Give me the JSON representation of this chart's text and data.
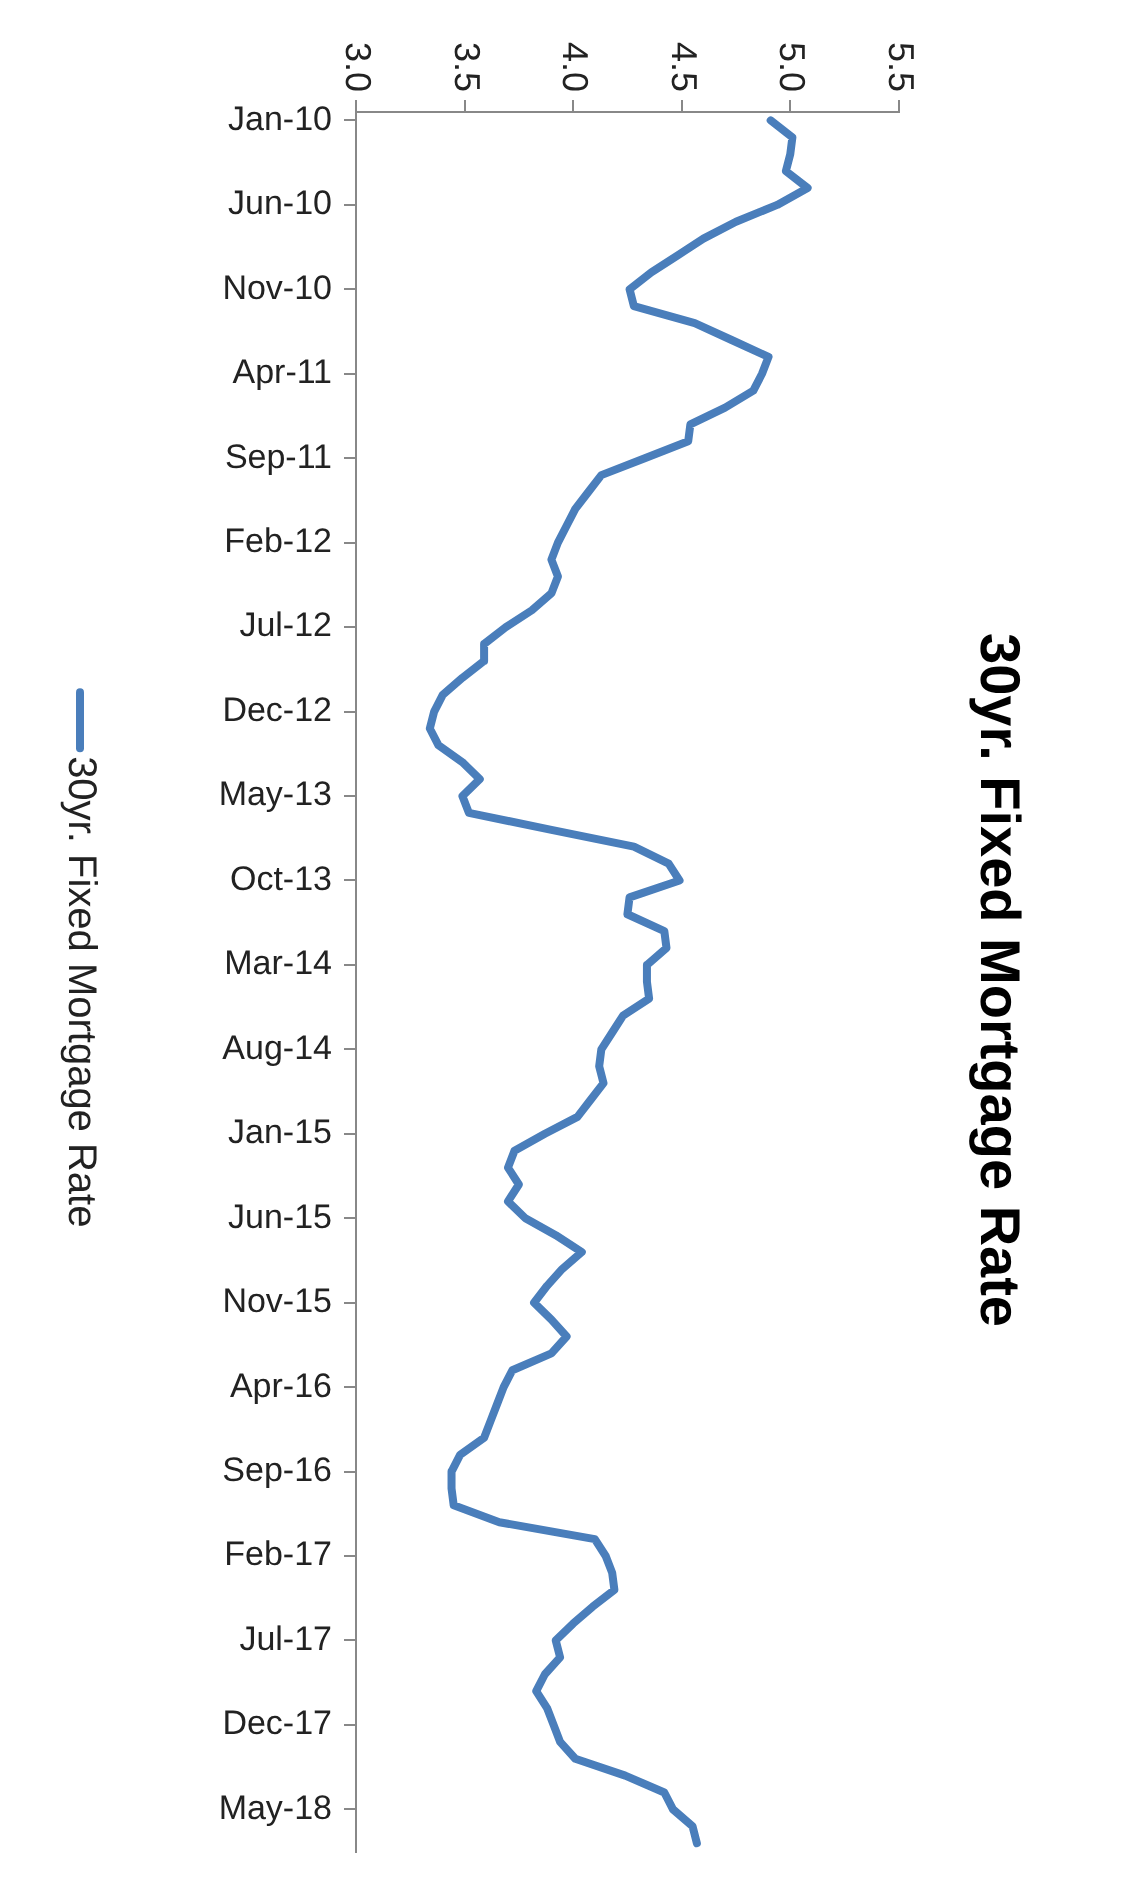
{
  "chart_data": {
    "type": "line",
    "title": "30yr. Fixed Mortgage Rate",
    "categories": [
      "Jan-10",
      null,
      null,
      null,
      null,
      "Jun-10",
      null,
      null,
      null,
      null,
      "Nov-10",
      null,
      null,
      null,
      null,
      "Apr-11",
      null,
      null,
      null,
      null,
      "Sep-11",
      null,
      null,
      null,
      null,
      "Feb-12",
      null,
      null,
      null,
      null,
      "Jul-12",
      null,
      null,
      null,
      null,
      "Dec-12",
      null,
      null,
      null,
      null,
      "May-13",
      null,
      null,
      null,
      null,
      "Oct-13",
      null,
      null,
      null,
      null,
      "Mar-14",
      null,
      null,
      null,
      null,
      "Aug-14",
      null,
      null,
      null,
      null,
      "Jan-15",
      null,
      null,
      null,
      null,
      "Jun-15",
      null,
      null,
      null,
      null,
      "Nov-15",
      null,
      null,
      null,
      null,
      "Apr-16",
      null,
      null,
      null,
      null,
      "Sep-16",
      null,
      null,
      null,
      null,
      "Feb-17",
      null,
      null,
      null,
      null,
      "Jul-17",
      null,
      null,
      null,
      null,
      "Dec-17",
      null,
      null,
      null,
      null,
      "May-18",
      null,
      null
    ],
    "series": [
      {
        "name": "30yr. Fixed Mortgage Rate",
        "color": "#4a7ebb",
        "values": [
          4.91,
          5.01,
          5.0,
          4.98,
          5.08,
          4.94,
          4.75,
          4.6,
          4.48,
          4.36,
          4.26,
          4.28,
          4.56,
          4.73,
          4.9,
          4.87,
          4.83,
          4.7,
          4.54,
          4.53,
          4.33,
          4.13,
          4.07,
          4.01,
          3.97,
          3.93,
          3.9,
          3.93,
          3.9,
          3.81,
          3.69,
          3.59,
          3.59,
          3.49,
          3.4,
          3.36,
          3.34,
          3.38,
          3.49,
          3.57,
          3.49,
          3.52,
          3.9,
          4.28,
          4.44,
          4.49,
          4.26,
          4.25,
          4.42,
          4.43,
          4.34,
          4.34,
          4.35,
          4.23,
          4.18,
          4.13,
          4.12,
          4.14,
          4.08,
          4.02,
          3.87,
          3.73,
          3.7,
          3.75,
          3.7,
          3.78,
          3.92,
          4.04,
          3.95,
          3.88,
          3.82,
          3.9,
          3.97,
          3.9,
          3.72,
          3.68,
          3.65,
          3.62,
          3.59,
          3.48,
          3.44,
          3.44,
          3.45,
          3.66,
          4.1,
          4.15,
          4.18,
          4.19,
          4.09,
          4.0,
          3.92,
          3.94,
          3.87,
          3.83,
          3.88,
          3.91,
          3.94,
          4.01,
          4.24,
          4.42,
          4.46,
          4.55,
          4.57
        ]
      }
    ],
    "orientation": "horizontal",
    "xlim": [
      3,
      5.5
    ],
    "xticks": [
      {
        "value": 3,
        "label": "3.0"
      },
      3.5,
      {
        "value": 4,
        "label": "4.0"
      },
      4.5,
      {
        "value": 5,
        "label": "5.0"
      },
      5.5
    ],
    "legend": "left",
    "marker": "none",
    "line_style": "solid"
  }
}
